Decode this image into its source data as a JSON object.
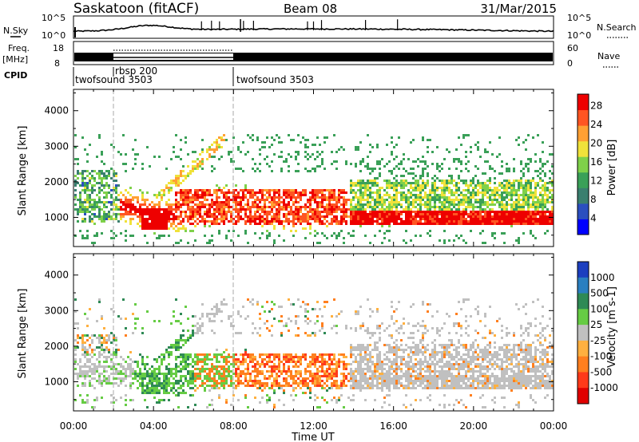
{
  "header": {
    "station": "Saskatoon (fitACF)",
    "beam": "Beam 08",
    "date": "31/Mar/2015"
  },
  "noise_panel": {
    "left_label": "N.Sky",
    "right_label": "N.Search",
    "left_ticks": [
      "10^5",
      "10^0"
    ],
    "right_ticks": [
      "10^5",
      "10^0"
    ]
  },
  "freq_panel": {
    "left_label": "Freq.",
    "unit_label": "[MHz]",
    "left_ticks": [
      "18",
      "8"
    ],
    "right_label": "Nave",
    "right_ticks": [
      "60",
      "0"
    ]
  },
  "cpid_panel": {
    "label": "CPID",
    "programs": [
      "twofsound 3503",
      "rbsp 200",
      "twofsound 3503"
    ]
  },
  "chart_data": [
    {
      "type": "heatmap",
      "name_label": "Power",
      "xlabel": "",
      "ylabel": "Slant Range [km]",
      "x_ticks": [
        "00:00",
        "04:00",
        "08:00",
        "12:00",
        "16:00",
        "20:00",
        "00:00"
      ],
      "x_range_hours": [
        0,
        24
      ],
      "y_ticks": [
        "1000",
        "2000",
        "3000",
        "4000"
      ],
      "y_range_km": [
        180,
        4600
      ],
      "colorbar": {
        "title": "Power [dB]",
        "ticks": [
          "4",
          "8",
          "12",
          "16",
          "20",
          "24",
          "28"
        ],
        "range": [
          0,
          30
        ],
        "colors": [
          "#0000ff",
          "#2b4fbf",
          "#3a7f6f",
          "#3aa058",
          "#7fd14a",
          "#f0e23a",
          "#ffa033",
          "#ff5522",
          "#ee0000"
        ]
      },
      "vertical_markers_hours": [
        2.0,
        8.0
      ]
    },
    {
      "type": "heatmap",
      "name_label": "Velocity",
      "xlabel": "Time UT",
      "ylabel": "Slant Range [km]",
      "x_ticks": [
        "00:00",
        "04:00",
        "08:00",
        "12:00",
        "16:00",
        "20:00",
        "00:00"
      ],
      "x_range_hours": [
        0,
        24
      ],
      "y_ticks": [
        "1000",
        "2000",
        "3000",
        "4000"
      ],
      "y_range_km": [
        180,
        4600
      ],
      "colorbar": {
        "title": "Velocity [m s-1]",
        "ticks": [
          "1000",
          "500",
          "100",
          "25",
          "-25",
          "-100",
          "-500",
          "-1000"
        ],
        "colors": [
          "#1c3fbf",
          "#2a7fc0",
          "#2e8a55",
          "#66cc44",
          "#c0c0c0",
          "#ffb040",
          "#ff7f1f",
          "#ff3a1a",
          "#e00000"
        ]
      },
      "vertical_markers_hours": [
        2.0,
        8.0
      ]
    }
  ]
}
